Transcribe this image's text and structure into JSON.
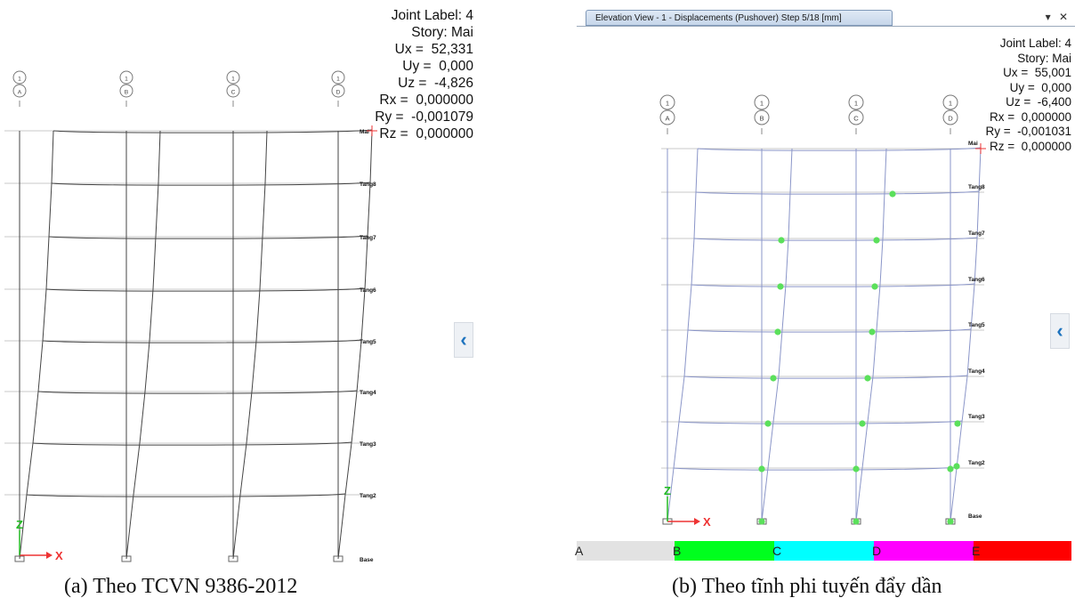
{
  "left_panel": {
    "grid_lines": [
      {
        "number": "1",
        "letter": "A"
      },
      {
        "number": "1",
        "letter": "B"
      },
      {
        "number": "1",
        "letter": "C"
      },
      {
        "number": "1",
        "letter": "D"
      }
    ],
    "story_labels": [
      "Mai",
      "Tang8",
      "Tang7",
      "Tang6",
      "Tang5",
      "Tang4",
      "Tang3",
      "Tang2",
      "Base"
    ],
    "readout": {
      "joint_label": "Joint Label: 4",
      "story": "Story: Mai",
      "ux": "Ux =  52,331",
      "uy": "Uy =  0,000",
      "uz": "Uz =  -4,826",
      "rx": "Rx =  0,000000",
      "ry": "Ry =  -0,001079",
      "rz": "Rz =  0,000000"
    },
    "axis_x": "X",
    "axis_z": "Z",
    "caption": "(a) Theo TCVN 9386-2012"
  },
  "right_panel": {
    "window_title": "Elevation View - 1   - Displacements (Pushover)  Step 5/18  [mm]",
    "window_controls": {
      "menu": "▾",
      "close": "✕"
    },
    "grid_lines": [
      {
        "number": "1",
        "letter": "A"
      },
      {
        "number": "1",
        "letter": "B"
      },
      {
        "number": "1",
        "letter": "C"
      },
      {
        "number": "1",
        "letter": "D"
      }
    ],
    "story_labels": [
      "Mai",
      "Tang8",
      "Tang7",
      "Tang6",
      "Tang5",
      "Tang4",
      "Tang3",
      "Tang2",
      "Base"
    ],
    "readout": {
      "joint_label": "Joint Label: 4",
      "story": "Story: Mai",
      "ux": "Ux =  55,001",
      "uy": "Uy =  0,000",
      "uz": "Uz =  -6,400",
      "rx": "Rx =  0,000000",
      "ry": "Ry =  -0,001031",
      "rz": "Rz =  0,000000"
    },
    "axis_x": "X",
    "axis_z": "Z",
    "legend": [
      {
        "label": "A",
        "color": "#e2e2e2"
      },
      {
        "label": "B",
        "color": "#00ff1e"
      },
      {
        "label": "C",
        "color": "#00ffff"
      },
      {
        "label": "D",
        "color": "#ff00ff"
      },
      {
        "label": "E",
        "color": "#ff0000"
      }
    ],
    "hinge_color": "#5be05b",
    "caption": "(b) Theo tĩnh phi tuyến đẩy dần"
  },
  "collapse_icon": "‹"
}
